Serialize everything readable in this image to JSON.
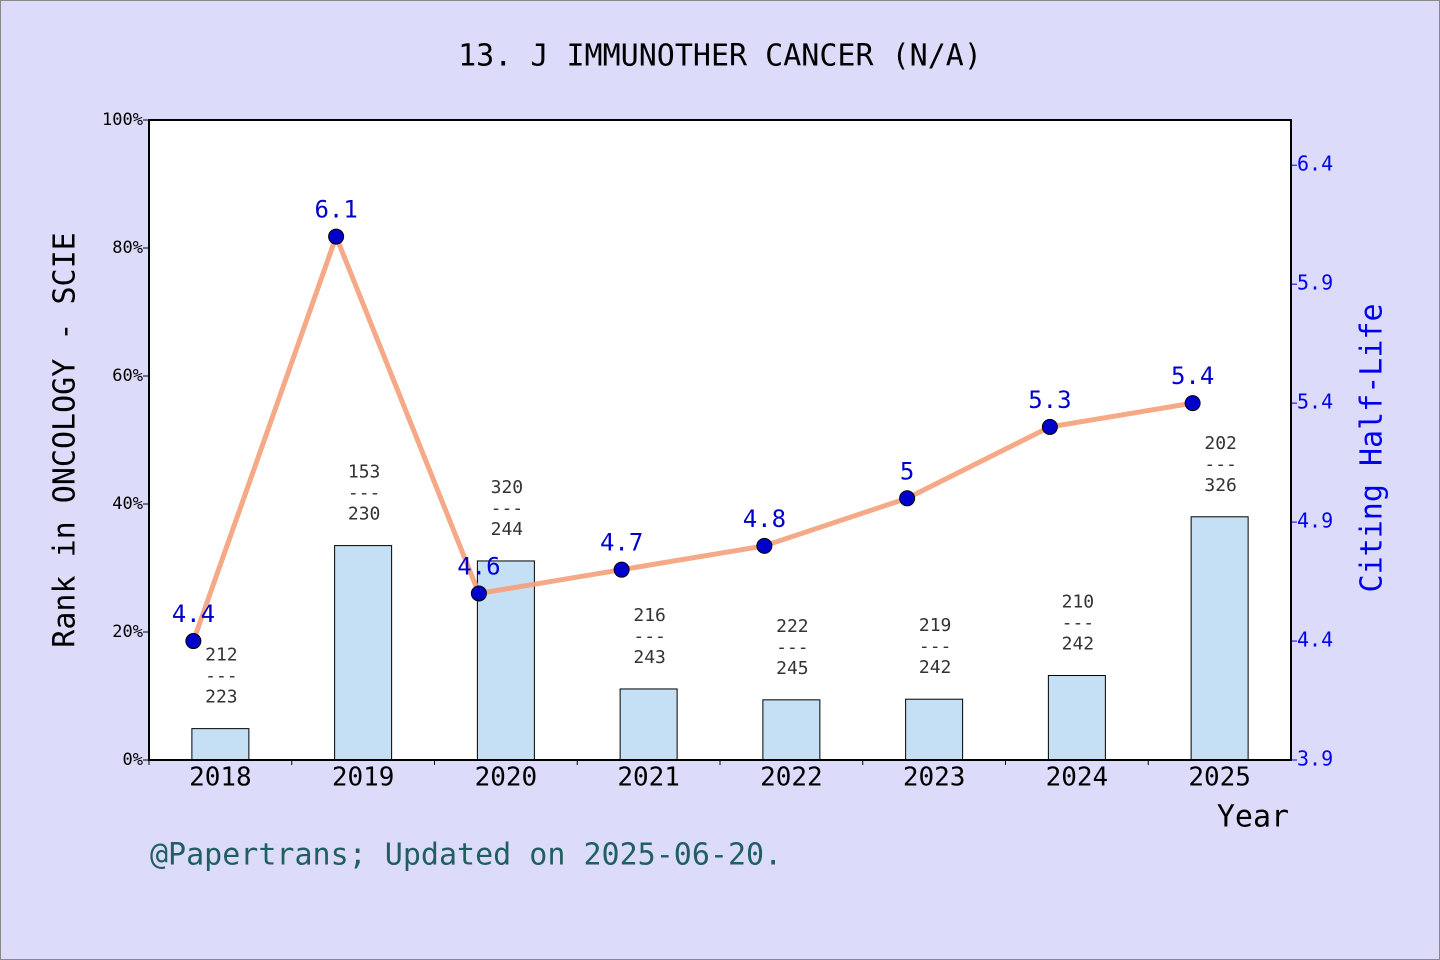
{
  "chart_data": {
    "type": "bar-line",
    "title": "13. J IMMUNOTHER CANCER (N/A)",
    "x_label": "Year",
    "y_label": "Rank in ONCOLOGY - SCIE",
    "y2_label": "Citing Half-Life",
    "footer": "@Papertrans; Updated on 2025-06-20.",
    "categories": [
      "2018",
      "2019",
      "2020",
      "2021",
      "2022",
      "2023",
      "2024",
      "2025"
    ],
    "series": [
      {
        "type": "bar",
        "color": "#c5dff5",
        "values": [
          4.9,
          33.5,
          31.1,
          11.1,
          9.4,
          9.5,
          13.2,
          38.0
        ],
        "rank_labels": [
          [
            "212",
            "223"
          ],
          [
            "153",
            "230"
          ],
          [
            "320",
            "244"
          ],
          [
            "216",
            "243"
          ],
          [
            "222",
            "245"
          ],
          [
            "219",
            "242"
          ],
          [
            "210",
            "242"
          ],
          [
            "202",
            "326"
          ]
        ],
        "rank_separator": "---"
      },
      {
        "type": "line",
        "axis": "y2",
        "color": "#f4a07a",
        "marker_color": "#0000cc",
        "values": [
          4.4,
          6.1,
          4.6,
          4.7,
          4.8,
          5,
          5.3,
          5.4
        ]
      }
    ],
    "ylim": [
      0,
      100
    ],
    "yticks": [
      {
        "value": 0,
        "label": "0%"
      },
      {
        "value": 20,
        "label": "20%"
      },
      {
        "value": 40,
        "label": "40%"
      },
      {
        "value": 60,
        "label": "60%"
      },
      {
        "value": 80,
        "label": "80%"
      },
      {
        "value": 100,
        "label": "100%"
      }
    ],
    "y2lim": [
      3.9,
      6.59
    ],
    "y2ticks": [
      3.9,
      4.4,
      4.9,
      5.4,
      5.9,
      6.4
    ]
  }
}
